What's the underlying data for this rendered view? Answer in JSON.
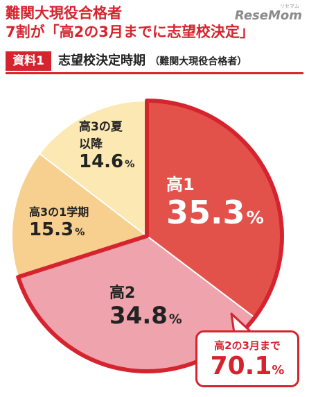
{
  "header": {
    "line1": "難関大現役合格者",
    "line2": "7割が「高2の3月までに志望校決定」",
    "brand": "ReseMom",
    "brand_ruby": "リセマム"
  },
  "subheader": {
    "badge": "資料1",
    "title": "志望校決定時期",
    "note": "（難関大現役合格者）"
  },
  "colors": {
    "accent": "#d6242f",
    "slice_koko1": "#e2524b",
    "slice_koko2": "#eea3ad",
    "slice_koko3_1": "#f7d08f",
    "slice_koko3_summer": "#fbe8b2"
  },
  "chart_data": {
    "type": "pie",
    "title": "志望校決定時期",
    "slices": [
      {
        "label": "高1",
        "value": 35.3,
        "display": "35.3",
        "unit": "%"
      },
      {
        "label": "高2",
        "value": 34.8,
        "display": "34.8",
        "unit": "%"
      },
      {
        "label": "高3の1学期",
        "value": 15.3,
        "display": "15.3",
        "unit": "%"
      },
      {
        "label": "高3の夏以降",
        "value": 14.6,
        "display": "14.6",
        "unit": "%"
      }
    ]
  },
  "callout": {
    "label": "高2の3月まで",
    "value": "70.1",
    "unit": "%"
  },
  "labels": {
    "summer_line1": "高3の夏",
    "summer_line2": "以降"
  }
}
